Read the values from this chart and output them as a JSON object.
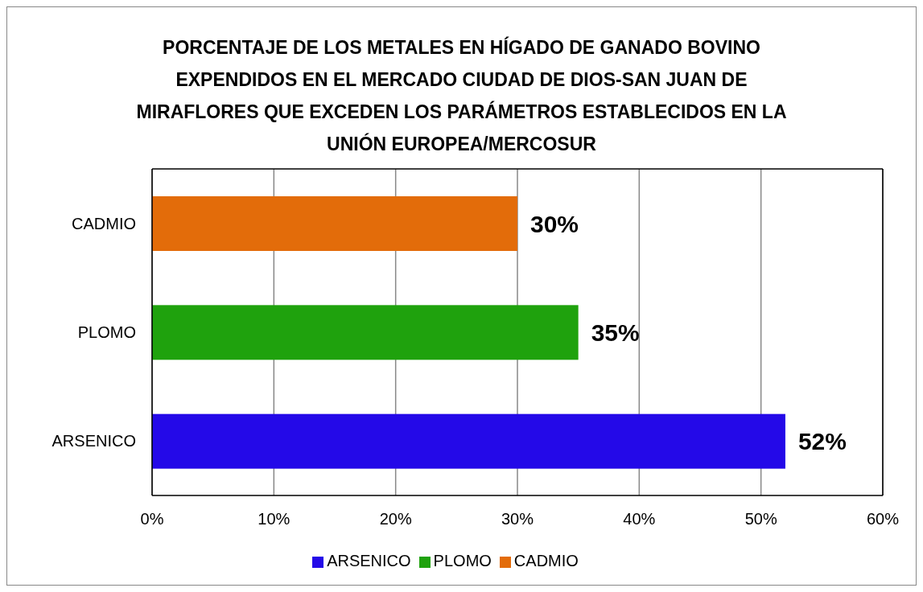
{
  "chart_data": {
    "type": "bar",
    "orientation": "horizontal",
    "title": "PORCENTAJE DE LOS METALES EN HÍGADO DE GANADO BOVINO EXPENDIDOS EN EL MERCADO CIUDAD DE DIOS-SAN JUAN DE MIRAFLORES QUE EXCEDEN LOS PARÁMETROS ESTABLECIDOS EN LA UNIÓN EUROPEA/MERCOSUR",
    "categories": [
      "CADMIO",
      "PLOMO",
      "ARSENICO"
    ],
    "series": [
      {
        "name": "ARSENICO",
        "color": "#2409e8",
        "values": [
          null,
          null,
          52
        ],
        "value_labels": [
          null,
          null,
          "52%"
        ]
      },
      {
        "name": "PLOMO",
        "color": "#1fa20d",
        "values": [
          null,
          35,
          null
        ],
        "value_labels": [
          null,
          "35%",
          null
        ]
      },
      {
        "name": "CADMIO",
        "color": "#e36c0a",
        "values": [
          30,
          null,
          null
        ],
        "value_labels": [
          "30%",
          null,
          null
        ]
      }
    ],
    "xlim": [
      0,
      60
    ],
    "xticks": [
      {
        "value": 0,
        "label": "0%"
      },
      {
        "value": 10,
        "label": "10%"
      },
      {
        "value": 20,
        "label": "20%"
      },
      {
        "value": 30,
        "label": "30%"
      },
      {
        "value": 40,
        "label": "40%"
      },
      {
        "value": 50,
        "label": "50%"
      },
      {
        "value": 60,
        "label": "60%"
      }
    ],
    "grid": "x",
    "legend": "bottom"
  }
}
